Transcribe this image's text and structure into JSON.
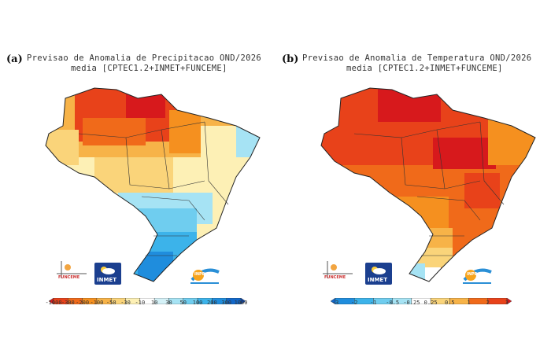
{
  "panels": [
    {
      "letter": "(a)",
      "title_line1": "Previsao de Anomalia de Precipitacao OND/2026",
      "title_line2": "media [CPTEC1.2+INMET+FUNCEME]",
      "colorbar_ticks": [
        "-1000",
        "-300",
        "-200",
        "-100",
        "-50",
        "-30",
        "-10",
        "10",
        "30",
        "50",
        "100",
        "200",
        "300",
        "1000"
      ],
      "colorbar_colors": [
        "#d7191c",
        "#e8421a",
        "#f06a1a",
        "#f5901f",
        "#f7b348",
        "#fad47a",
        "#fdf0b5",
        "#ffffff",
        "#d4f1f7",
        "#a6e3f4",
        "#6fcdef",
        "#3cb3ea",
        "#1f8ddd",
        "#1167c9",
        "#0b45a8"
      ],
      "logos": {
        "funceme": "FUNCEME",
        "inmet": "INMET",
        "inpe": "INPE"
      }
    },
    {
      "letter": "(b)",
      "title_line1": "Previsao de Anomalia de Temperatura OND/2026",
      "title_line2": "media [CPTEC1.2+INMET+FUNCEME]",
      "colorbar_ticks": [
        "-3",
        "-2",
        "-1",
        "-0.5",
        "-0.25",
        "0.25",
        "0.5",
        "1",
        "2",
        "3"
      ],
      "colorbar_colors": [
        "#1167c9",
        "#1f8ddd",
        "#3cb3ea",
        "#6fcdef",
        "#a6e3f4",
        "#ffffff",
        "#fad47a",
        "#f7b348",
        "#f06a1a",
        "#e8421a",
        "#d7191c"
      ],
      "logos": {
        "funceme": "FUNCEME",
        "inmet": "INMET",
        "inpe": "INPE"
      }
    }
  ]
}
